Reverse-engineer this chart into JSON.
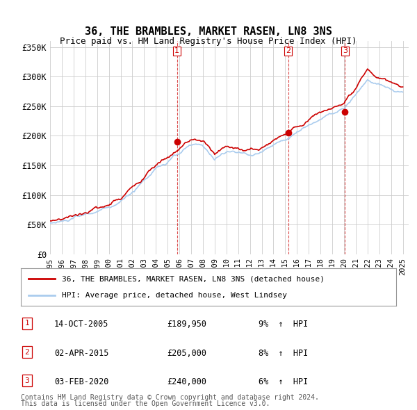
{
  "title": "36, THE BRAMBLES, MARKET RASEN, LN8 3NS",
  "subtitle": "Price paid vs. HM Land Registry's House Price Index (HPI)",
  "ylabel_ticks": [
    "£0",
    "£50K",
    "£100K",
    "£150K",
    "£200K",
    "£250K",
    "£300K",
    "£350K"
  ],
  "ytick_values": [
    0,
    50000,
    100000,
    150000,
    200000,
    250000,
    300000,
    350000
  ],
  "ylim": [
    0,
    360000
  ],
  "xlim_start": 1995.0,
  "xlim_end": 2025.5,
  "transactions": [
    {
      "label": "1",
      "date_str": "14-OCT-2005",
      "x": 2005.79,
      "price": 189950,
      "pct": "9%",
      "dir": "↑"
    },
    {
      "label": "2",
      "date_str": "02-APR-2015",
      "x": 2015.25,
      "price": 205000,
      "pct": "8%",
      "dir": "↑"
    },
    {
      "label": "3",
      "date_str": "03-FEB-2020",
      "x": 2020.09,
      "price": 240000,
      "pct": "6%",
      "dir": "↑"
    }
  ],
  "legend_line1": "36, THE BRAMBLES, MARKET RASEN, LN8 3NS (detached house)",
  "legend_line2": "HPI: Average price, detached house, West Lindsey",
  "footnote1": "Contains HM Land Registry data © Crown copyright and database right 2024.",
  "footnote2": "This data is licensed under the Open Government Licence v3.0.",
  "red_color": "#cc0000",
  "blue_color": "#aaccee",
  "vline_color": "#cc0000",
  "grid_color": "#cccccc",
  "table_border_color": "#cc0000",
  "background_color": "#ffffff",
  "xtick_years": [
    1995,
    1996,
    1997,
    1998,
    1999,
    2000,
    2001,
    2002,
    2003,
    2004,
    2005,
    2006,
    2007,
    2008,
    2009,
    2010,
    2011,
    2012,
    2013,
    2014,
    2015,
    2016,
    2017,
    2018,
    2019,
    2020,
    2021,
    2022,
    2023,
    2024,
    2025
  ]
}
